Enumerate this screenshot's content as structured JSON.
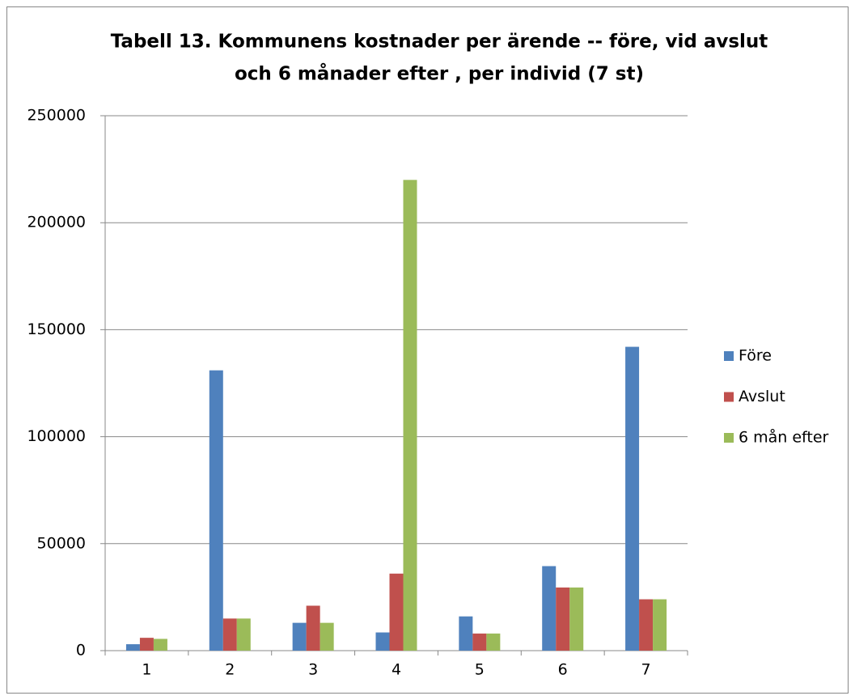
{
  "chart_data": {
    "type": "bar",
    "title": [
      "Tabell 13.  Kommunens kostnader per ärende -- före, vid avslut",
      "och 6 månader efter , per individ (7 st)"
    ],
    "categories": [
      "1",
      "2",
      "3",
      "4",
      "5",
      "6",
      "7"
    ],
    "series": [
      {
        "name": "Före",
        "color": "#4f81bd",
        "values": [
          3000,
          131000,
          13000,
          8500,
          16000,
          39500,
          142000
        ]
      },
      {
        "name": "Avslut",
        "color": "#c0504d",
        "values": [
          6000,
          15000,
          21000,
          36000,
          8000,
          29500,
          24000
        ]
      },
      {
        "name": "6 mån efter",
        "color": "#9bbb59",
        "values": [
          5500,
          15000,
          13000,
          220000,
          8000,
          29500,
          24000
        ]
      }
    ],
    "ylim": [
      0,
      250000
    ],
    "yticks": [
      0,
      50000,
      100000,
      150000,
      200000,
      250000
    ],
    "grid": true,
    "legend": "right"
  }
}
